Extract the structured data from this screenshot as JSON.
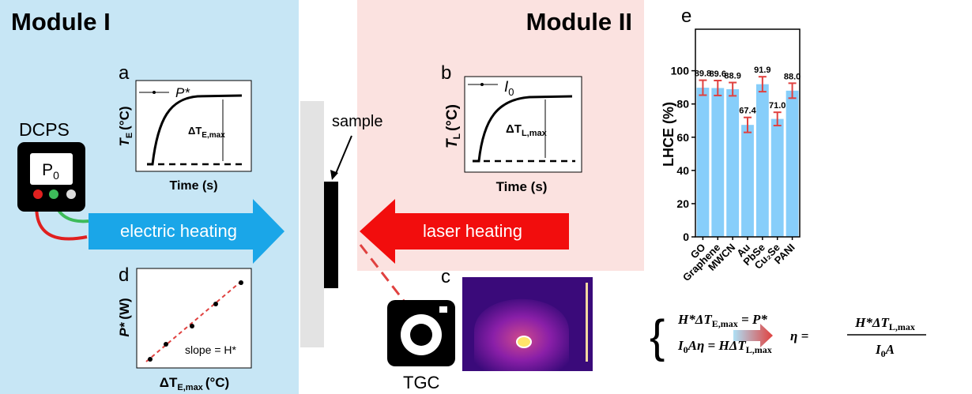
{
  "module1": {
    "title": "Module I",
    "device": "DCPS",
    "display": {
      "symbol": "P",
      "sub": "0"
    },
    "arrow": "electric heating"
  },
  "module2": {
    "title": "Module II",
    "arrow": "laser heating",
    "sample": "sample",
    "camera": "TGC"
  },
  "panel_a": {
    "label": "a",
    "ylabel": {
      "symbol": "T",
      "sub": "E",
      "unit": "(°C)"
    },
    "xlabel": "Time (s)",
    "legend": "P*",
    "annotation": {
      "symbol": "ΔT",
      "sub": "E,max"
    }
  },
  "panel_b": {
    "label": "b",
    "ylabel": {
      "symbol": "T",
      "sub": "L",
      "unit": "(°C)"
    },
    "xlabel": "Time (s)",
    "legend": {
      "symbol": "I",
      "sub": "0"
    },
    "annotation": {
      "symbol": "ΔT",
      "sub": "L,max"
    }
  },
  "panel_c": {
    "label": "c"
  },
  "panel_d": {
    "label": "d",
    "ylabel": {
      "symbol": "P*",
      "unit": "(W)"
    },
    "xlabel": {
      "symbol": "ΔT",
      "sub": "E,max",
      "unit": "(°C)"
    },
    "annotation": "slope = H*"
  },
  "chart_data": {
    "type": "bar",
    "label": "e",
    "ylabel": "LHCE (%)",
    "categories": [
      "GO",
      "Graphene",
      "MWCN",
      "Au",
      "PbSe",
      "Cu₂Se",
      "PANI"
    ],
    "values": [
      89.8,
      89.6,
      88.9,
      67.4,
      91.9,
      71.0,
      88.0
    ],
    "value_labels": [
      "89.8",
      "89.6",
      "88.9",
      "67.4",
      "91.9",
      "71.0",
      "88.0"
    ],
    "errors": [
      4.5,
      4.5,
      4.0,
      4.5,
      4.5,
      4.0,
      4.5
    ],
    "color": "#87cefa",
    "error_color": "#e0413f",
    "ylim": [
      0,
      125
    ],
    "yticks": [
      0,
      20,
      40,
      60,
      80,
      100
    ]
  },
  "equations": {
    "eq1": {
      "a": "H*ΔT",
      "sub": "E,max",
      "b": " = P*"
    },
    "eq2": {
      "a": "I",
      "sub1": "0",
      "b": "Aη = HΔT",
      "sub2": "L,max"
    },
    "result": {
      "lhs": "η = ",
      "num_a": "H*ΔT",
      "num_sub": "L,max",
      "den_a": "I",
      "den_sub": "0",
      "den_b": "A"
    }
  }
}
